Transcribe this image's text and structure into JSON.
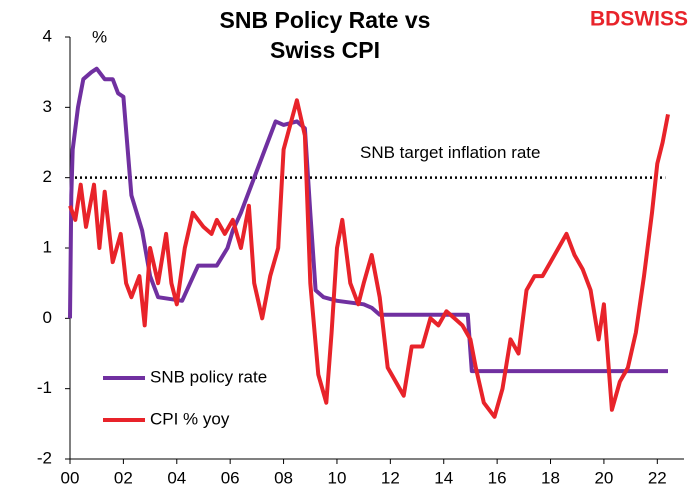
{
  "chart_data": {
    "type": "line",
    "title": [
      "SNB Policy Rate vs",
      "Swiss CPI"
    ],
    "brand": "BDSWISS",
    "y_unit_label": "%",
    "xlim": [
      2000,
      2023
    ],
    "xticks": [
      {
        "value": 2000,
        "label": "00"
      },
      {
        "value": 2002,
        "label": "02"
      },
      {
        "value": 2004,
        "label": "04"
      },
      {
        "value": 2006,
        "label": "06"
      },
      {
        "value": 2008,
        "label": "08"
      },
      {
        "value": 2010,
        "label": "10"
      },
      {
        "value": 2012,
        "label": "12"
      },
      {
        "value": 2014,
        "label": "14"
      },
      {
        "value": 2016,
        "label": "16"
      },
      {
        "value": 2018,
        "label": "18"
      },
      {
        "value": 2020,
        "label": "20"
      },
      {
        "value": 2022,
        "label": "22"
      }
    ],
    "ylim": [
      -2,
      4
    ],
    "yticks": [
      -2,
      -1,
      0,
      1,
      2,
      3,
      4
    ],
    "target": {
      "value": 2,
      "label": "SNB target inflation rate"
    },
    "series": [
      {
        "name": "SNB policy rate",
        "color": "#7030a0",
        "x": [
          2000.0,
          2000.05,
          2000.1,
          2000.3,
          2000.5,
          2000.8,
          2001.0,
          2001.3,
          2001.6,
          2001.8,
          2002.0,
          2002.3,
          2002.7,
          2003.0,
          2003.3,
          2004.2,
          2004.5,
          2004.8,
          2005.5,
          2005.9,
          2006.1,
          2006.4,
          2006.9,
          2007.3,
          2007.7,
          2008.0,
          2008.5,
          2008.8,
          2009.0,
          2009.2,
          2009.5,
          2010.0,
          2011.0,
          2011.3,
          2011.6,
          2014.9,
          2015.05,
          2022.4
        ],
        "values": [
          0,
          1.75,
          2.4,
          3.0,
          3.4,
          3.5,
          3.55,
          3.4,
          3.4,
          3.2,
          3.15,
          1.75,
          1.25,
          0.6,
          0.3,
          0.25,
          0.5,
          0.75,
          0.75,
          1.0,
          1.25,
          1.5,
          2.0,
          2.4,
          2.8,
          2.75,
          2.8,
          2.7,
          1.5,
          0.4,
          0.3,
          0.25,
          0.2,
          0.15,
          0.05,
          0.05,
          -0.75,
          -0.75
        ]
      },
      {
        "name": "CPI % yoy",
        "color": "#e8232a",
        "x": [
          2000.0,
          2000.2,
          2000.4,
          2000.6,
          2000.9,
          2001.1,
          2001.3,
          2001.6,
          2001.9,
          2002.1,
          2002.3,
          2002.6,
          2002.8,
          2003.0,
          2003.3,
          2003.6,
          2003.8,
          2004.0,
          2004.3,
          2004.6,
          2005.0,
          2005.3,
          2005.5,
          2005.8,
          2006.1,
          2006.4,
          2006.7,
          2006.9,
          2007.2,
          2007.5,
          2007.8,
          2008.0,
          2008.5,
          2008.8,
          2009.0,
          2009.3,
          2009.6,
          2009.8,
          2010.0,
          2010.2,
          2010.5,
          2010.8,
          2011.0,
          2011.3,
          2011.6,
          2011.9,
          2012.2,
          2012.5,
          2012.8,
          2013.2,
          2013.5,
          2013.8,
          2014.1,
          2014.4,
          2014.7,
          2015.0,
          2015.2,
          2015.5,
          2015.9,
          2016.2,
          2016.5,
          2016.8,
          2017.1,
          2017.4,
          2017.7,
          2018.0,
          2018.3,
          2018.6,
          2018.9,
          2019.2,
          2019.5,
          2019.8,
          2020.0,
          2020.3,
          2020.6,
          2020.9,
          2021.2,
          2021.5,
          2021.8,
          2022.0,
          2022.2,
          2022.4
        ],
        "values": [
          1.6,
          1.4,
          1.9,
          1.3,
          1.9,
          1.0,
          1.8,
          0.8,
          1.2,
          0.5,
          0.3,
          0.6,
          -0.1,
          1.0,
          0.5,
          1.2,
          0.5,
          0.2,
          1.0,
          1.5,
          1.3,
          1.2,
          1.4,
          1.2,
          1.4,
          1.0,
          1.6,
          0.5,
          0.0,
          0.6,
          1.0,
          2.4,
          3.1,
          2.6,
          0.5,
          -0.8,
          -1.2,
          -0.2,
          1.0,
          1.4,
          0.5,
          0.2,
          0.5,
          0.9,
          0.3,
          -0.7,
          -0.9,
          -1.1,
          -0.4,
          -0.4,
          0.0,
          -0.1,
          0.1,
          0.0,
          -0.1,
          -0.3,
          -0.7,
          -1.2,
          -1.4,
          -1.0,
          -0.3,
          -0.5,
          0.4,
          0.6,
          0.6,
          0.8,
          1.0,
          1.2,
          0.9,
          0.7,
          0.4,
          -0.3,
          0.2,
          -1.3,
          -0.9,
          -0.7,
          -0.2,
          0.6,
          1.5,
          2.2,
          2.5,
          2.9
        ]
      }
    ]
  }
}
